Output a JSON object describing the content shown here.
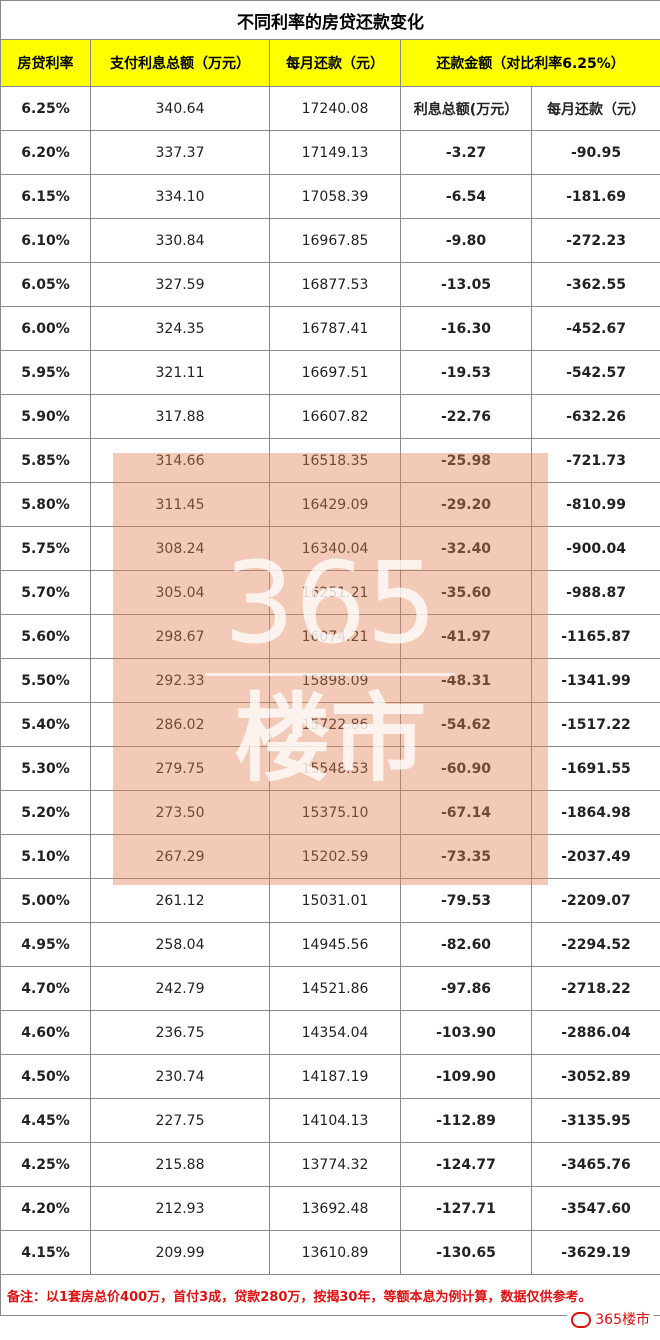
{
  "title": "不同利率的房贷还款变化",
  "headers": {
    "rate": "房贷利率",
    "total_interest": "支付利息总额（万元）",
    "monthly": "每月还款（元）",
    "compare": "还款金额（对比利率6.25%）"
  },
  "sub_headers": {
    "interest_diff": "利息总额(万元）",
    "monthly_diff": "每月还款（元）"
  },
  "rows": [
    {
      "rate": "6.20%",
      "interest": "337.37",
      "monthly": "17149.13",
      "interest_diff": "-3.27",
      "monthly_diff": "-90.95"
    },
    {
      "rate": "6.15%",
      "interest": "334.10",
      "monthly": "17058.39",
      "interest_diff": "-6.54",
      "monthly_diff": "-181.69"
    },
    {
      "rate": "6.10%",
      "interest": "330.84",
      "monthly": "16967.85",
      "interest_diff": "-9.80",
      "monthly_diff": "-272.23"
    },
    {
      "rate": "6.05%",
      "interest": "327.59",
      "monthly": "16877.53",
      "interest_diff": "-13.05",
      "monthly_diff": "-362.55"
    },
    {
      "rate": "6.00%",
      "interest": "324.35",
      "monthly": "16787.41",
      "interest_diff": "-16.30",
      "monthly_diff": "-452.67"
    },
    {
      "rate": "5.95%",
      "interest": "321.11",
      "monthly": "16697.51",
      "interest_diff": "-19.53",
      "monthly_diff": "-542.57"
    },
    {
      "rate": "5.90%",
      "interest": "317.88",
      "monthly": "16607.82",
      "interest_diff": "-22.76",
      "monthly_diff": "-632.26"
    },
    {
      "rate": "5.85%",
      "interest": "314.66",
      "monthly": "16518.35",
      "interest_diff": "-25.98",
      "monthly_diff": "-721.73"
    },
    {
      "rate": "5.80%",
      "interest": "311.45",
      "monthly": "16429.09",
      "interest_diff": "-29.20",
      "monthly_diff": "-810.99"
    },
    {
      "rate": "5.75%",
      "interest": "308.24",
      "monthly": "16340.04",
      "interest_diff": "-32.40",
      "monthly_diff": "-900.04"
    },
    {
      "rate": "5.70%",
      "interest": "305.04",
      "monthly": "16251.21",
      "interest_diff": "-35.60",
      "monthly_diff": "-988.87"
    },
    {
      "rate": "5.60%",
      "interest": "298.67",
      "monthly": "16074.21",
      "interest_diff": "-41.97",
      "monthly_diff": "-1165.87"
    },
    {
      "rate": "5.50%",
      "interest": "292.33",
      "monthly": "15898.09",
      "interest_diff": "-48.31",
      "monthly_diff": "-1341.99"
    },
    {
      "rate": "5.40%",
      "interest": "286.02",
      "monthly": "15722.86",
      "interest_diff": "-54.62",
      "monthly_diff": "-1517.22"
    },
    {
      "rate": "5.30%",
      "interest": "279.75",
      "monthly": "15548.53",
      "interest_diff": "-60.90",
      "monthly_diff": "-1691.55"
    },
    {
      "rate": "5.20%",
      "interest": "273.50",
      "monthly": "15375.10",
      "interest_diff": "-67.14",
      "monthly_diff": "-1864.98"
    },
    {
      "rate": "5.10%",
      "interest": "267.29",
      "monthly": "15202.59",
      "interest_diff": "-73.35",
      "monthly_diff": "-2037.49"
    },
    {
      "rate": "5.00%",
      "interest": "261.12",
      "monthly": "15031.01",
      "interest_diff": "-79.53",
      "monthly_diff": "-2209.07"
    },
    {
      "rate": "4.95%",
      "interest": "258.04",
      "monthly": "14945.56",
      "interest_diff": "-82.60",
      "monthly_diff": "-2294.52"
    },
    {
      "rate": "4.70%",
      "interest": "242.79",
      "monthly": "14521.86",
      "interest_diff": "-97.86",
      "monthly_diff": "-2718.22"
    },
    {
      "rate": "4.60%",
      "interest": "236.75",
      "monthly": "14354.04",
      "interest_diff": "-103.90",
      "monthly_diff": "-2886.04"
    },
    {
      "rate": "4.50%",
      "interest": "230.74",
      "monthly": "14187.19",
      "interest_diff": "-109.90",
      "monthly_diff": "-3052.89"
    },
    {
      "rate": "4.45%",
      "interest": "227.75",
      "monthly": "14104.13",
      "interest_diff": "-112.89",
      "monthly_diff": "-3135.95"
    },
    {
      "rate": "4.25%",
      "interest": "215.88",
      "monthly": "13774.32",
      "interest_diff": "-124.77",
      "monthly_diff": "-3465.76"
    },
    {
      "rate": "4.20%",
      "interest": "212.93",
      "monthly": "13692.48",
      "interest_diff": "-127.71",
      "monthly_diff": "-3547.60"
    },
    {
      "rate": "4.15%",
      "interest": "209.99",
      "monthly": "13610.89",
      "interest_diff": "-130.65",
      "monthly_diff": "-3629.19"
    }
  ],
  "base_row": {
    "rate": "6.25%",
    "interest": "340.64",
    "monthly": "17240.08"
  },
  "note": "备注：以1套房总价400万，首付3成，贷款280万，按揭30年，等额本息为例计算，数据仅供参考。",
  "watermark": {
    "number": "365",
    "text": "楼市"
  },
  "brand": "365楼市",
  "colors": {
    "header_bg": "#ffff00",
    "negative": "#e01010",
    "watermark": "#e08054"
  }
}
